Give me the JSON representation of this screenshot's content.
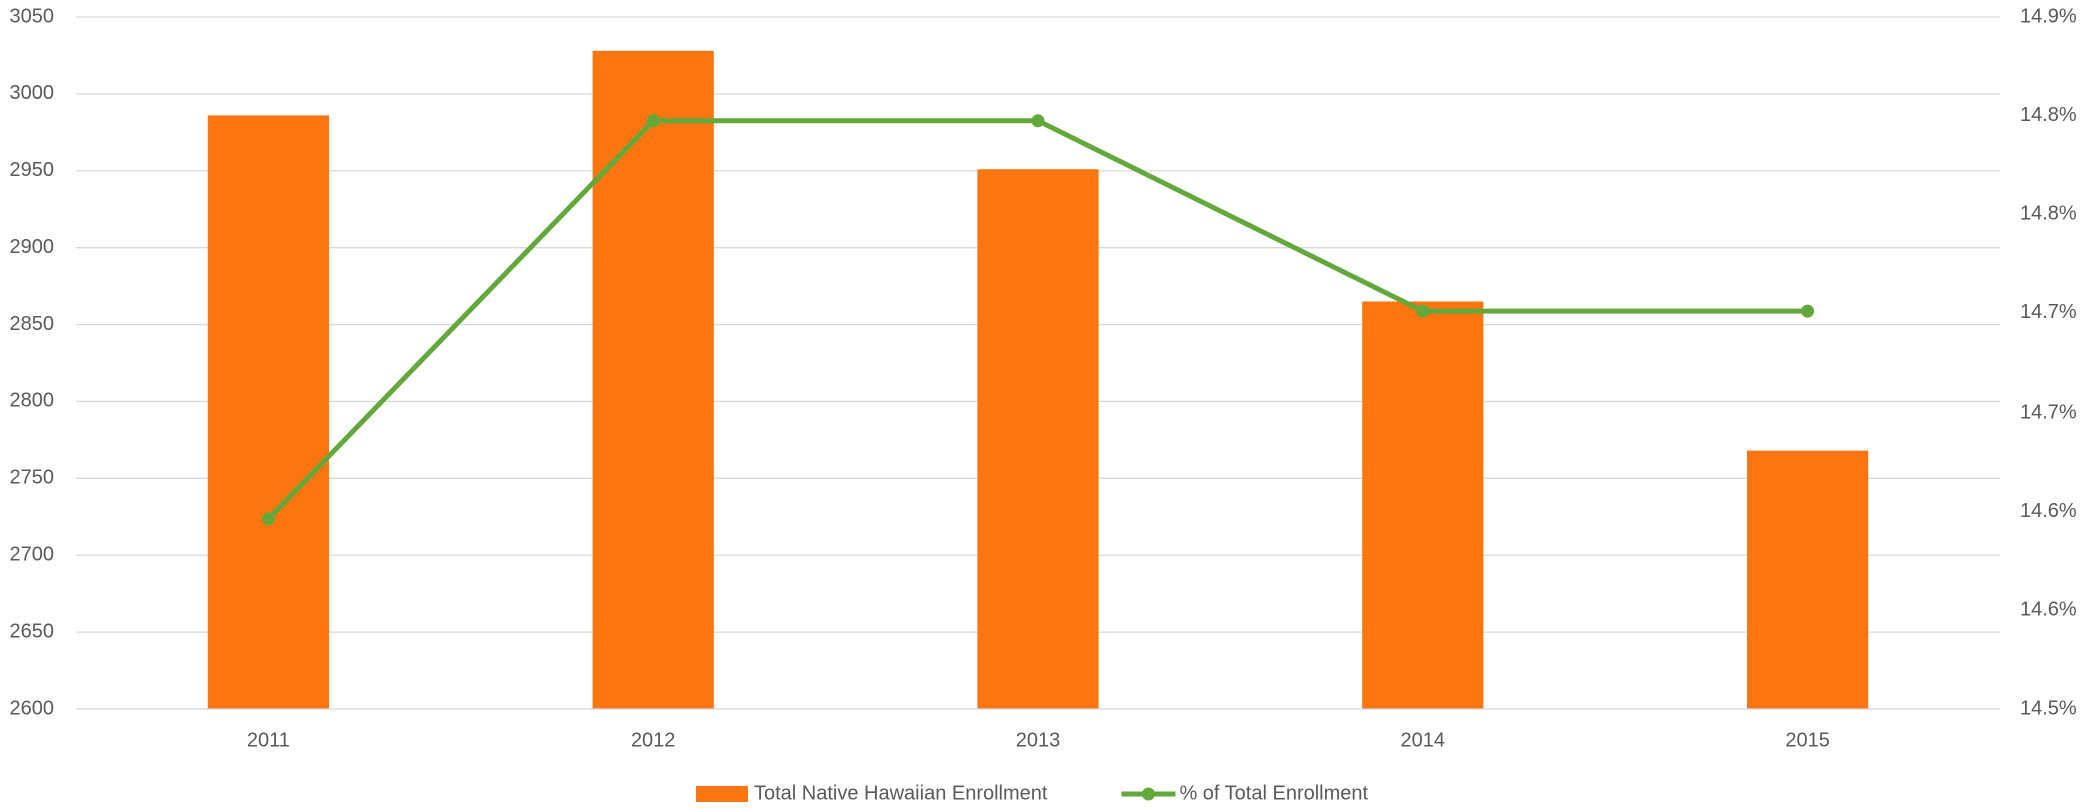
{
  "chart_data": {
    "type": "bar-line",
    "categories": [
      "2011",
      "2012",
      "2013",
      "2014",
      "2015"
    ],
    "series": [
      {
        "name": "Total Native Hawaiian Enrollment",
        "color": "#fb7510",
        "type": "bar",
        "values": [
          2986,
          3028,
          2951,
          2865,
          2768
        ]
      },
      {
        "name": "% of Total Enrollment",
        "color": "#62a83a",
        "type": "line",
        "axis": "y2",
        "values": [
          14.61,
          14.84,
          14.84,
          14.73,
          14.73
        ]
      }
    ],
    "ylim": [
      2600,
      3050
    ],
    "yticks": [
      2600,
      2650,
      2700,
      2750,
      2800,
      2850,
      2900,
      2950,
      3000,
      3050
    ],
    "y2lim": [
      14.5,
      14.9
    ],
    "y2ticks": [
      {
        "value": 14.5,
        "label": "14.5%"
      },
      {
        "value": 14.557,
        "label": "14.6%"
      },
      {
        "value": 14.614,
        "label": "14.6%"
      },
      {
        "value": 14.671,
        "label": "14.7%"
      },
      {
        "value": 14.729,
        "label": "14.7%"
      },
      {
        "value": 14.786,
        "label": "14.8%"
      },
      {
        "value": 14.843,
        "label": "14.8%"
      },
      {
        "value": 14.9,
        "label": "14.9%"
      }
    ],
    "grid": true,
    "legend": "bottom"
  }
}
